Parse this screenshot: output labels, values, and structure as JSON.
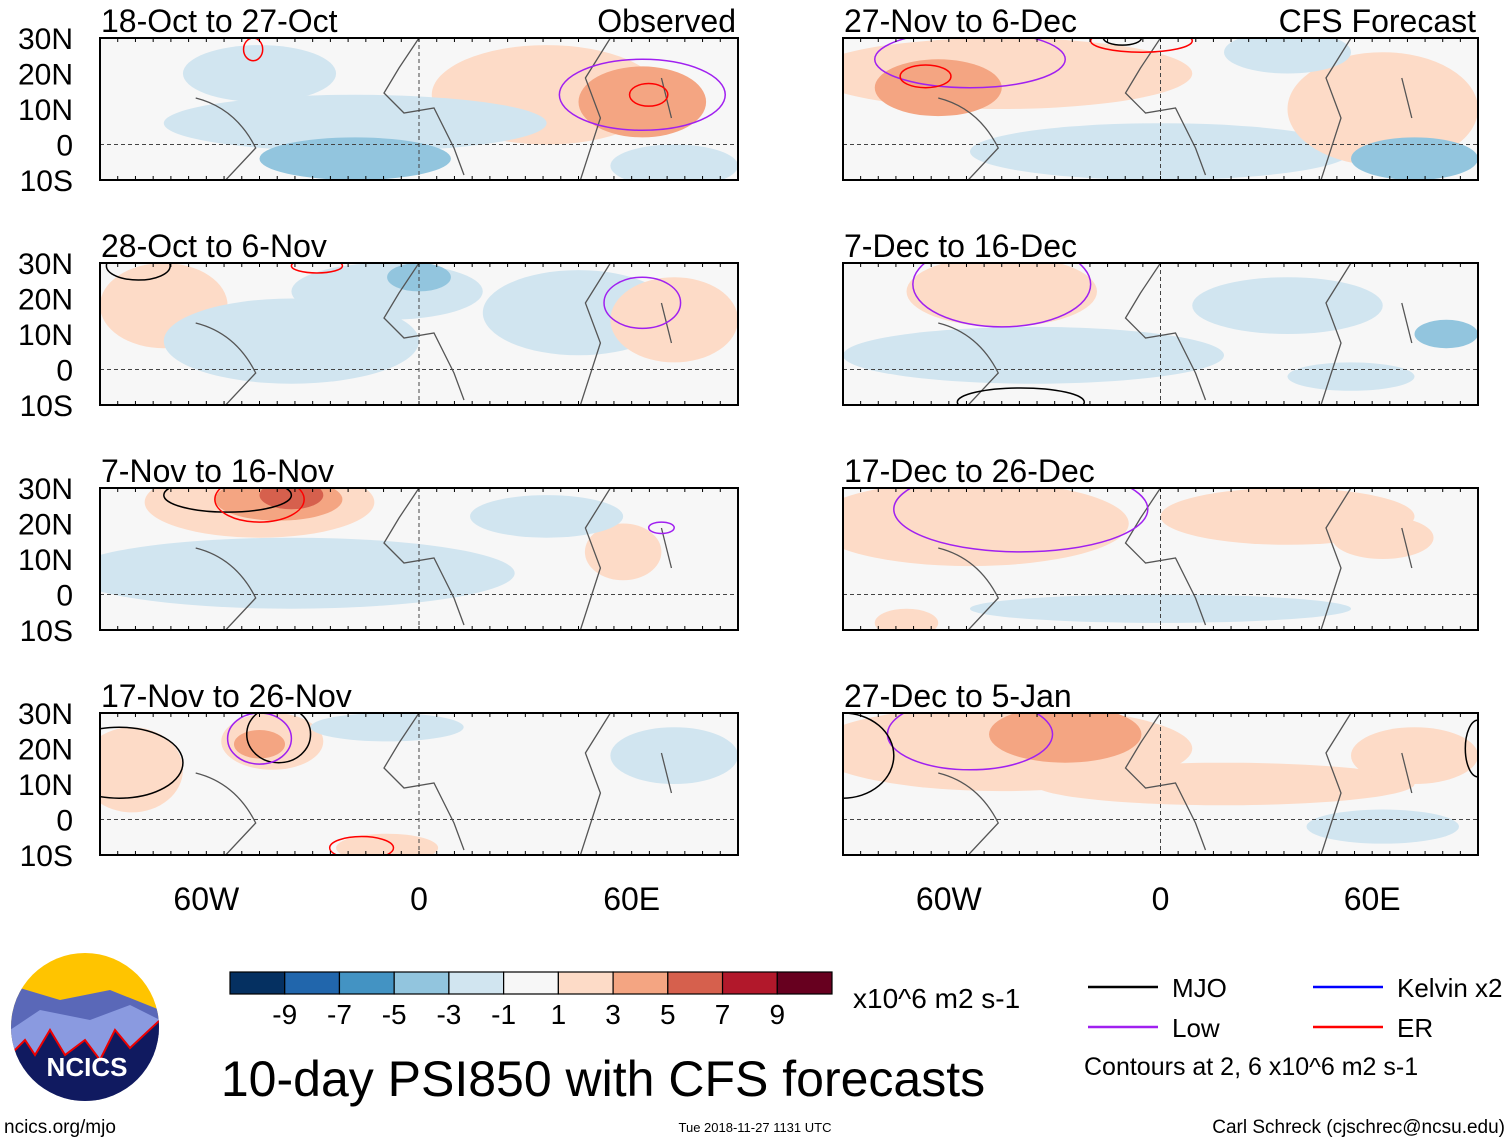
{
  "figure": {
    "title": "10-day PSI850 with CFS forecasts",
    "left_column_label": "Observed",
    "right_column_label": "CFS Forecast",
    "units": "x10^6 m2 s-1",
    "contours_note": "Contours at 2, 6 x10^6 m2 s-1",
    "url": "ncics.org/mjo",
    "timestamp": "Tue 2018-11-27 1131 UTC",
    "author": "Carl Schreck (cjschrec@ncsu.edu)",
    "logo_text": "NCICS"
  },
  "axes": {
    "lat_labels": [
      "30N",
      "20N",
      "10N",
      "0",
      "10S"
    ],
    "lon_labels": [
      "60W",
      "0",
      "60E"
    ]
  },
  "panels": [
    {
      "title": "18-Oct to 27-Oct",
      "column": "left"
    },
    {
      "title": "28-Oct to 6-Nov",
      "column": "left"
    },
    {
      "title": "7-Nov to 16-Nov",
      "column": "left"
    },
    {
      "title": "17-Nov to 26-Nov",
      "column": "left"
    },
    {
      "title": "27-Nov to 6-Dec",
      "column": "right"
    },
    {
      "title": "7-Dec to 16-Dec",
      "column": "right"
    },
    {
      "title": "17-Dec to 26-Dec",
      "column": "right"
    },
    {
      "title": "27-Dec to 5-Jan",
      "column": "right"
    }
  ],
  "colorbar": {
    "ticks": [
      "-9",
      "-7",
      "-5",
      "-3",
      "-1",
      "1",
      "3",
      "5",
      "7",
      "9"
    ],
    "colors": [
      "#053061",
      "#2166ac",
      "#4393c3",
      "#92c5de",
      "#d1e5f0",
      "#f7f7f7",
      "#fddbc7",
      "#f4a582",
      "#d6604d",
      "#b2182b",
      "#67001f"
    ]
  },
  "legend": [
    {
      "label": "MJO",
      "color": "#000000"
    },
    {
      "label": "Kelvin x2",
      "color": "#0000ff"
    },
    {
      "label": "Low",
      "color": "#a020f0"
    },
    {
      "label": "ER",
      "color": "#ff0000"
    }
  ]
}
